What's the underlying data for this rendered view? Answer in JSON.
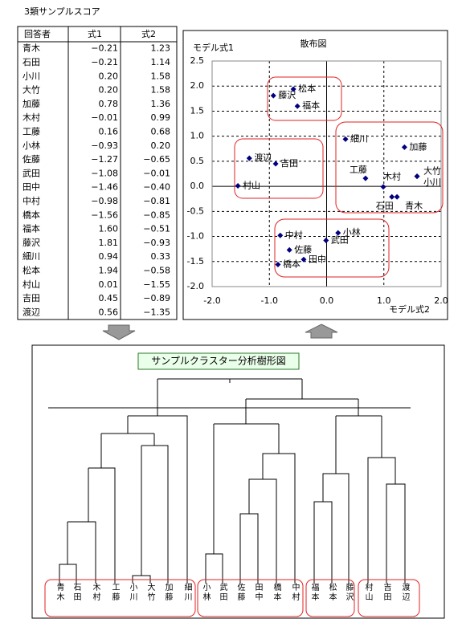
{
  "title": "3類サンプルスコア",
  "table": {
    "header": [
      "回答者",
      "式1",
      "式2"
    ],
    "rows": [
      [
        "青木",
        "−0.21",
        "1.23"
      ],
      [
        "石田",
        "−0.21",
        "1.14"
      ],
      [
        "小川",
        "0.20",
        "1.58"
      ],
      [
        "大竹",
        "0.20",
        "1.58"
      ],
      [
        "加藤",
        "0.78",
        "1.36"
      ],
      [
        "木村",
        "−0.01",
        "0.99"
      ],
      [
        "工藤",
        "0.16",
        "0.68"
      ],
      [
        "小林",
        "−0.93",
        "0.20"
      ],
      [
        "佐藤",
        "−1.27",
        "−0.65"
      ],
      [
        "武田",
        "−1.08",
        "−0.01"
      ],
      [
        "田中",
        "−1.46",
        "−0.40"
      ],
      [
        "中村",
        "−0.98",
        "−0.81"
      ],
      [
        "橋本",
        "−1.56",
        "−0.85"
      ],
      [
        "福本",
        "1.60",
        "−0.51"
      ],
      [
        "藤沢",
        "1.81",
        "−0.93"
      ],
      [
        "細川",
        "0.94",
        "0.33"
      ],
      [
        "松本",
        "1.94",
        "−0.58"
      ],
      [
        "村山",
        "0.01",
        "−1.55"
      ],
      [
        "吉田",
        "0.45",
        "−0.89"
      ],
      [
        "渡辺",
        "0.56",
        "−1.35"
      ]
    ]
  },
  "chart_data": {
    "type": "scatter",
    "title": "散布図",
    "ylabel": "モデル式1",
    "xlabel": "モデル式2",
    "point_labels": [
      "青木",
      "石田",
      "小川",
      "大竹",
      "加藤",
      "木村",
      "工藤",
      "小林",
      "佐藤",
      "武田",
      "田中",
      "中村",
      "橋本",
      "福本",
      "藤沢",
      "細川",
      "松本",
      "村山",
      "吉田",
      "渡辺"
    ],
    "x": [
      1.23,
      1.14,
      1.58,
      1.58,
      1.36,
      0.99,
      0.68,
      0.2,
      -0.65,
      -0.01,
      -0.4,
      -0.81,
      -0.85,
      -0.51,
      -0.93,
      0.33,
      -0.58,
      -1.55,
      -0.89,
      -1.35
    ],
    "values": [
      -0.21,
      -0.21,
      0.2,
      0.2,
      0.78,
      -0.01,
      0.16,
      -0.93,
      -1.27,
      -1.08,
      -1.46,
      -0.98,
      -1.56,
      1.6,
      1.81,
      0.94,
      1.94,
      0.01,
      0.45,
      0.56
    ],
    "color": "#000080",
    "xlim": [
      -2.0,
      2.0
    ],
    "xticks": [
      {
        "value": -2.0,
        "label": "-2.0"
      },
      {
        "value": -1.0,
        "label": "-1.0"
      },
      {
        "value": 0.0,
        "label": "0.0"
      },
      {
        "value": 1.0,
        "label": "1.0"
      },
      {
        "value": 2.0,
        "label": "2.0"
      }
    ],
    "ylim": [
      -2.0,
      2.5
    ],
    "yticks": [
      2.5,
      {
        "value": 2.0,
        "label": "2.0"
      },
      1.5,
      {
        "value": 1.0,
        "label": "1.0"
      },
      0.5,
      {
        "value": 0.0,
        "label": "0.0"
      },
      -0.5,
      {
        "value": -1.0,
        "label": "-1.0"
      },
      -1.5,
      {
        "value": -2.0,
        "label": "-2.0"
      }
    ],
    "grid": true
  },
  "dendrogram": {
    "title": "サンプルクラスター分析樹形図",
    "leaves": [
      "青木",
      "石田",
      "木村",
      "工藤",
      "小川",
      "大竹",
      "加藤",
      "細川",
      "小林",
      "武田",
      "佐藤",
      "田中",
      "橋本",
      "中村",
      "福本",
      "松本",
      "藤沢",
      "村山",
      "吉田",
      "渡辺"
    ]
  }
}
